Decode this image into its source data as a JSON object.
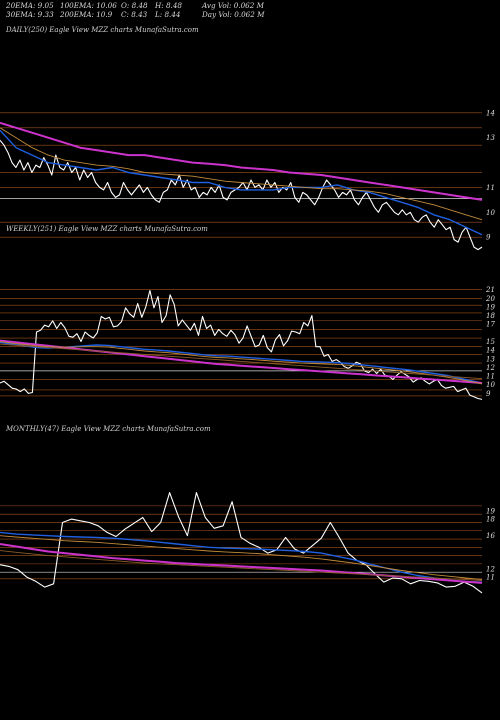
{
  "header": {
    "rows": [
      [
        "20EMA: 9.05",
        "100EMA: 10.06",
        "O: 8.48",
        "H: 8.48",
        "Avg Vol: 0.062  M"
      ],
      [
        "30EMA: 9.33",
        "200EMA: 10.9",
        "C: 8.43",
        "L: 8.44",
        "Day Vol: 0.062  M"
      ]
    ]
  },
  "colors": {
    "price": "#ffffff",
    "ema_fast": "#1f5fe0",
    "ema_slow": "#cc33cc",
    "ema_mid": "#c28a3a",
    "ema_long": "#8a5a2a",
    "grid": "#a0521d",
    "grid_white": "#d8d8d8"
  },
  "chart_data": [
    {
      "type": "line",
      "title": "DAILY(250) Eagle  View  MZZ charts MunafaSutra.com",
      "ylim": [
        8,
        15
      ],
      "ticks": [
        9,
        10,
        11,
        13,
        14
      ],
      "series": [
        {
          "key": "price",
          "values": [
            12.9,
            12.7,
            12.4,
            12.0,
            11.8,
            12.1,
            11.7,
            12.0,
            11.6,
            11.9,
            11.8,
            12.2,
            11.9,
            11.5,
            12.3,
            11.8,
            11.7,
            12.0,
            11.6,
            11.8,
            11.3,
            11.7,
            11.4,
            11.6,
            11.2,
            11.0,
            10.9,
            11.2,
            10.8,
            10.6,
            10.7,
            11.2,
            10.9,
            10.7,
            10.9,
            11.1,
            10.8,
            11.0,
            10.7,
            10.5,
            10.4,
            10.8,
            10.9,
            11.3,
            11.1,
            11.5,
            11.0,
            11.3,
            10.9,
            11.0,
            10.6,
            10.8,
            10.7,
            11.0,
            10.8,
            11.1,
            10.6,
            10.5,
            10.8,
            10.9,
            11.0,
            11.2,
            10.9,
            11.3,
            11.0,
            11.1,
            10.9,
            11.3,
            11.0,
            11.2,
            10.8,
            11.0,
            10.9,
            11.2,
            10.6,
            10.4,
            10.8,
            10.7,
            10.5,
            10.3,
            10.6,
            11.0,
            11.3,
            11.1,
            10.9,
            10.6,
            10.8,
            10.7,
            10.9,
            10.5,
            10.3,
            10.6,
            10.8,
            10.5,
            10.2,
            10.0,
            10.3,
            10.4,
            10.2,
            10.0,
            9.9,
            10.1,
            9.9,
            10.0,
            9.7,
            9.6,
            9.8,
            9.9,
            9.6,
            9.4,
            9.7,
            9.5,
            9.3,
            9.4,
            8.9,
            8.8,
            9.2,
            9.4,
            9.0,
            8.6,
            8.5,
            8.6
          ]
        },
        {
          "key": "ema_fast",
          "values": [
            13.3,
            12.6,
            12.3,
            12.0,
            11.9,
            11.8,
            11.7,
            11.8,
            11.6,
            11.5,
            11.4,
            11.3,
            11.2,
            11.2,
            11.0,
            10.9,
            10.9,
            10.9,
            11.0,
            11.0,
            11.0,
            11.1,
            10.9,
            10.8,
            10.6,
            10.4,
            10.2,
            9.9,
            9.7,
            9.4,
            9.1
          ]
        },
        {
          "key": "ema_slow",
          "values": [
            13.6,
            13.4,
            13.2,
            13.0,
            12.8,
            12.6,
            12.5,
            12.4,
            12.3,
            12.3,
            12.2,
            12.1,
            12.0,
            11.95,
            11.9,
            11.8,
            11.75,
            11.7,
            11.6,
            11.55,
            11.5,
            11.4,
            11.3,
            11.2,
            11.1,
            11.0,
            10.9,
            10.8,
            10.7,
            10.6,
            10.5
          ]
        },
        {
          "key": "ema_mid",
          "values": [
            13.4,
            13.0,
            12.6,
            12.3,
            12.1,
            12.0,
            11.9,
            11.85,
            11.75,
            11.6,
            11.55,
            11.5,
            11.45,
            11.35,
            11.25,
            11.2,
            11.15,
            11.1,
            11.05,
            11.0,
            10.95,
            10.95,
            10.9,
            10.85,
            10.75,
            10.6,
            10.45,
            10.3,
            10.1,
            9.9,
            9.7
          ]
        }
      ],
      "hlines": [
        {
          "v": 14.0,
          "c": "grid"
        },
        {
          "v": 13.4,
          "c": "grid"
        },
        {
          "v": 12.7,
          "c": "grid"
        },
        {
          "v": 11.6,
          "c": "grid"
        },
        {
          "v": 11.0,
          "c": "grid"
        },
        {
          "v": 10.55,
          "c": "grid_white"
        },
        {
          "v": 9.6,
          "c": "grid"
        },
        {
          "v": 9.0,
          "c": "grid"
        }
      ]
    },
    {
      "type": "line",
      "title": "WEEKLY(251) Eagle  View  MZZ charts MunafaSutra.com",
      "ylim": [
        8,
        22
      ],
      "ticks": [
        9,
        10,
        11,
        12,
        13,
        14,
        15,
        17,
        18,
        19,
        20,
        21
      ],
      "series": [
        {
          "key": "price",
          "values": [
            10.2,
            10.4,
            10.0,
            9.6,
            9.5,
            9.2,
            9.5,
            9.0,
            9.1,
            16.1,
            16.3,
            16.9,
            16.7,
            17.4,
            16.5,
            17.2,
            16.6,
            15.6,
            15.5,
            15.9,
            15.0,
            16.1,
            15.7,
            15.4,
            16.0,
            17.9,
            17.6,
            17.8,
            16.7,
            16.8,
            17.3,
            18.9,
            18.2,
            17.8,
            19.4,
            17.8,
            19.0,
            20.9,
            18.9,
            20.2,
            17.2,
            18.0,
            20.4,
            19.3,
            16.8,
            17.5,
            16.9,
            16.3,
            17.1,
            15.7,
            17.9,
            16.5,
            16.9,
            15.7,
            16.4,
            15.9,
            15.6,
            16.3,
            15.8,
            14.8,
            15.4,
            16.8,
            15.6,
            14.4,
            14.6,
            15.7,
            14.3,
            13.8,
            15.2,
            15.8,
            14.5,
            15.1,
            16.2,
            16.1,
            15.9,
            17.2,
            16.8,
            18.0,
            14.4,
            14.4,
            13.3,
            13.5,
            12.7,
            12.9,
            12.6,
            12.1,
            11.9,
            12.2,
            12.6,
            12.4,
            11.6,
            11.4,
            11.8,
            11.3,
            11.8,
            11.1,
            11.0,
            10.6,
            11.1,
            11.5,
            11.2,
            10.9,
            10.3,
            10.6,
            10.8,
            10.4,
            10.1,
            10.4,
            10.6,
            9.9,
            9.6,
            9.7,
            9.8,
            9.2,
            9.4,
            9.6,
            8.8,
            8.6,
            8.4,
            8.3
          ]
        },
        {
          "key": "ema_fast",
          "values": [
            14.9,
            14.7,
            14.5,
            14.3,
            14.25,
            14.3,
            14.4,
            14.5,
            14.6,
            14.55,
            14.4,
            14.25,
            14.1,
            14.0,
            13.9,
            13.75,
            13.6,
            13.45,
            13.35,
            13.3,
            13.2,
            13.1,
            13.0,
            12.9,
            12.8,
            12.7,
            12.65,
            12.6,
            12.55,
            12.45,
            12.3,
            12.15,
            12.0,
            11.85,
            11.7,
            11.5,
            11.3,
            11.1,
            10.8,
            10.5,
            10.2
          ]
        },
        {
          "key": "ema_slow",
          "values": [
            15.1,
            14.95,
            14.8,
            14.65,
            14.5,
            14.35,
            14.2,
            14.05,
            13.9,
            13.75,
            13.6,
            13.45,
            13.3,
            13.15,
            13.0,
            12.85,
            12.7,
            12.55,
            12.4,
            12.3,
            12.2,
            12.1,
            12.0,
            11.9,
            11.8,
            11.7,
            11.6,
            11.5,
            11.4,
            11.3,
            11.2,
            11.1,
            11.0,
            10.9,
            10.8,
            10.7,
            10.6,
            10.5,
            10.4,
            10.3,
            10.2
          ]
        },
        {
          "key": "ema_mid",
          "values": [
            15.0,
            14.8,
            14.65,
            14.5,
            14.4,
            14.35,
            14.35,
            14.4,
            14.4,
            14.35,
            14.2,
            14.05,
            13.9,
            13.8,
            13.7,
            13.55,
            13.4,
            13.25,
            13.15,
            13.1,
            13.0,
            12.9,
            12.8,
            12.7,
            12.6,
            12.5,
            12.45,
            12.4,
            12.35,
            12.25,
            12.1,
            11.95,
            11.8,
            11.65,
            11.5,
            11.3,
            11.1,
            10.9,
            10.65,
            10.4,
            10.1
          ]
        },
        {
          "key": "ema_long",
          "values": [
            14.7,
            14.6,
            14.5,
            14.4,
            14.3,
            14.2,
            14.1,
            14.0,
            13.9,
            13.8,
            13.7,
            13.6,
            13.5,
            13.4,
            13.3,
            13.2,
            13.1,
            13.0,
            12.9,
            12.8,
            12.7,
            12.6,
            12.5,
            12.4,
            12.3,
            12.2,
            12.1,
            12.0,
            11.9,
            11.8,
            11.7,
            11.6,
            11.5,
            11.4,
            11.3,
            11.2,
            11.1,
            11.0,
            10.9,
            10.8,
            10.7
          ]
        }
      ],
      "hlines": [
        {
          "v": 21.0,
          "c": "grid"
        },
        {
          "v": 20.0,
          "c": "grid"
        },
        {
          "v": 19.2,
          "c": "grid"
        },
        {
          "v": 18.3,
          "c": "grid"
        },
        {
          "v": 17.4,
          "c": "grid"
        },
        {
          "v": 16.4,
          "c": "grid"
        },
        {
          "v": 15.4,
          "c": "grid"
        },
        {
          "v": 14.4,
          "c": "grid"
        },
        {
          "v": 13.5,
          "c": "grid"
        },
        {
          "v": 12.5,
          "c": "grid"
        },
        {
          "v": 11.6,
          "c": "grid_white"
        },
        {
          "v": 10.6,
          "c": "grid"
        },
        {
          "v": 9.4,
          "c": "grid"
        },
        {
          "v": 8.7,
          "c": "grid"
        }
      ]
    },
    {
      "type": "line",
      "title": "MONTHLY(47) Eagle  View  MZZ charts MunafaSutra.com",
      "ylim": [
        8,
        22
      ],
      "ticks": [
        11,
        12,
        16,
        18,
        19
      ],
      "series": [
        {
          "key": "price",
          "values": [
            12.5,
            12.3,
            11.9,
            11.0,
            10.5,
            9.8,
            10.2,
            17.6,
            18.0,
            17.8,
            17.6,
            17.2,
            16.4,
            15.9,
            16.8,
            17.5,
            18.2,
            16.5,
            17.6,
            21.2,
            18.3,
            16.0,
            21.2,
            18.2,
            16.9,
            17.2,
            20.1,
            15.8,
            15.1,
            14.6,
            13.9,
            14.3,
            15.8,
            14.4,
            13.9,
            14.8,
            15.7,
            17.6,
            15.8,
            13.9,
            13.0,
            12.5,
            11.4,
            10.4,
            10.9,
            10.8,
            10.2,
            10.6,
            10.5,
            10.3,
            9.8,
            9.9,
            10.4,
            9.9,
            9.1
          ]
        },
        {
          "key": "ema_fast",
          "values": [
            16.4,
            16.2,
            16.1,
            16.0,
            15.9,
            15.85,
            15.8,
            15.7,
            15.55,
            15.4,
            15.2,
            15.0,
            14.8,
            14.6,
            14.5,
            14.45,
            14.4,
            14.3,
            14.2,
            14.1,
            13.9,
            13.5,
            13.1,
            12.6,
            12.1,
            11.6,
            11.2,
            10.9,
            10.6,
            10.45,
            10.4
          ]
        },
        {
          "key": "ema_slow",
          "values": [
            15.0,
            14.7,
            14.4,
            14.1,
            13.9,
            13.7,
            13.5,
            13.3,
            13.15,
            13.0,
            12.85,
            12.7,
            12.6,
            12.5,
            12.4,
            12.3,
            12.2,
            12.1,
            12.0,
            11.9,
            11.8,
            11.65,
            11.5,
            11.35,
            11.2,
            11.05,
            10.9,
            10.75,
            10.6,
            10.45,
            10.3
          ]
        },
        {
          "key": "ema_mid",
          "values": [
            16.0,
            15.85,
            15.7,
            15.55,
            15.4,
            15.3,
            15.2,
            15.05,
            14.9,
            14.75,
            14.6,
            14.45,
            14.3,
            14.15,
            14.05,
            13.95,
            13.85,
            13.7,
            13.55,
            13.4,
            13.2,
            12.95,
            12.7,
            12.4,
            12.1,
            11.8,
            11.55,
            11.3,
            11.1,
            10.9,
            10.7
          ]
        },
        {
          "key": "ema_long",
          "values": [
            14.2,
            14.0,
            13.8,
            13.6,
            13.45,
            13.3,
            13.15,
            13.0,
            12.85,
            12.7,
            12.6,
            12.5,
            12.4,
            12.3,
            12.2,
            12.1,
            12.0,
            11.9,
            11.8,
            11.7,
            11.6,
            11.5,
            11.4,
            11.3,
            11.2,
            11.1,
            11.0,
            10.9,
            10.8,
            10.7,
            10.6
          ]
        }
      ],
      "hlines": [
        {
          "v": 19.6,
          "c": "grid"
        },
        {
          "v": 18.6,
          "c": "grid"
        },
        {
          "v": 17.6,
          "c": "grid"
        },
        {
          "v": 16.6,
          "c": "grid"
        },
        {
          "v": 15.6,
          "c": "grid"
        },
        {
          "v": 14.6,
          "c": "grid"
        },
        {
          "v": 13.6,
          "c": "grid"
        },
        {
          "v": 12.6,
          "c": "grid"
        },
        {
          "v": 11.6,
          "c": "grid_white"
        },
        {
          "v": 10.8,
          "c": "grid"
        }
      ]
    }
  ]
}
